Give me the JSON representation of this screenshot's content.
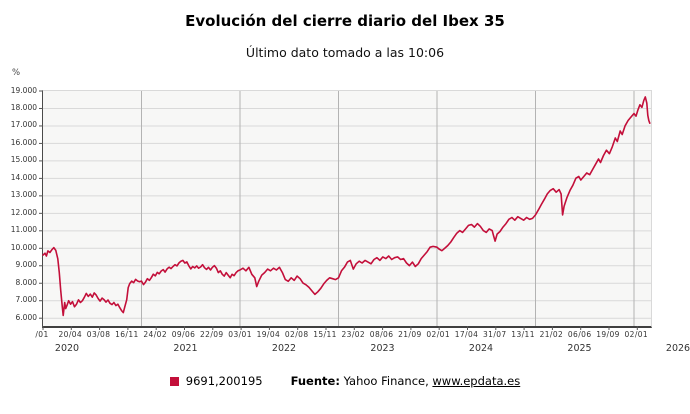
{
  "header": {
    "title": "Evolución del cierre diario del Ibex 35",
    "subtitle": "Último dato tomado a las 10:06"
  },
  "axes": {
    "y_unit_label": "%",
    "y_tick_labels": [
      "19.000",
      "18.000",
      "17.000",
      "16.000",
      "15.000",
      "14.000",
      "13.000",
      "12.000",
      "11.000",
      "10.000",
      "9.000",
      "8.000",
      "7.000",
      "6.000"
    ],
    "x_tick_labels": [
      "/01",
      "20/04",
      "03/08",
      "16/11",
      "24/02",
      "09/06",
      "22/09",
      "03/01",
      "19/04",
      "02/08",
      "15/11",
      "23/02",
      "08/06",
      "21/09",
      "02/01",
      "17/04",
      "31/07",
      "13/11",
      "21/02",
      "06/06",
      "19/09",
      "02/01"
    ],
    "year_labels": [
      "2020",
      "2021",
      "2022",
      "2023",
      "2024",
      "2025",
      "2026"
    ]
  },
  "legend": {
    "marker": "red-square",
    "series_label": "9691,200195",
    "source_label": "Fuente:",
    "source_text": " Yahoo Finance, ",
    "source_link": "www.epdata.es"
  },
  "colors": {
    "line": "#c30f3a",
    "h_grid": "#d9d9d9",
    "v_grid": "#b3b3b3",
    "axis": "#3f3f3f",
    "tick": "#555555",
    "plot_bg": "#f7f7f6"
  },
  "chart_data": {
    "type": "line",
    "title": "Evolución del cierre diario del Ibex 35",
    "subtitle": "Último dato tomado a las 10:06",
    "ylabel": "%",
    "ylim": [
      6000,
      19000
    ],
    "y_tick_step": 1000,
    "x_range_years": [
      2020.0,
      2026.17
    ],
    "grid": true,
    "legend_position": "bottom",
    "series": [
      {
        "name": "9691,200195",
        "color": "#c30f3a",
        "points": [
          [
            2020.0,
            9610
          ],
          [
            2020.02,
            9720
          ],
          [
            2020.035,
            9560
          ],
          [
            2020.05,
            9850
          ],
          [
            2020.07,
            9760
          ],
          [
            2020.09,
            9920
          ],
          [
            2020.11,
            10040
          ],
          [
            2020.13,
            9880
          ],
          [
            2020.15,
            9400
          ],
          [
            2020.165,
            8600
          ],
          [
            2020.18,
            7600
          ],
          [
            2020.195,
            6700
          ],
          [
            2020.205,
            6160
          ],
          [
            2020.22,
            6900
          ],
          [
            2020.23,
            6550
          ],
          [
            2020.245,
            6750
          ],
          [
            2020.26,
            7000
          ],
          [
            2020.28,
            6800
          ],
          [
            2020.3,
            6950
          ],
          [
            2020.32,
            6650
          ],
          [
            2020.34,
            6800
          ],
          [
            2020.36,
            7050
          ],
          [
            2020.38,
            6900
          ],
          [
            2020.4,
            7000
          ],
          [
            2020.42,
            7200
          ],
          [
            2020.44,
            7420
          ],
          [
            2020.46,
            7250
          ],
          [
            2020.48,
            7380
          ],
          [
            2020.5,
            7200
          ],
          [
            2020.52,
            7450
          ],
          [
            2020.54,
            7320
          ],
          [
            2020.56,
            7120
          ],
          [
            2020.58,
            6980
          ],
          [
            2020.6,
            7150
          ],
          [
            2020.62,
            7060
          ],
          [
            2020.64,
            6920
          ],
          [
            2020.66,
            7040
          ],
          [
            2020.68,
            6850
          ],
          [
            2020.7,
            6780
          ],
          [
            2020.72,
            6900
          ],
          [
            2020.74,
            6720
          ],
          [
            2020.76,
            6800
          ],
          [
            2020.78,
            6600
          ],
          [
            2020.8,
            6420
          ],
          [
            2020.815,
            6320
          ],
          [
            2020.83,
            6650
          ],
          [
            2020.85,
            7050
          ],
          [
            2020.865,
            7750
          ],
          [
            2020.88,
            7980
          ],
          [
            2020.9,
            8120
          ],
          [
            2020.92,
            8030
          ],
          [
            2020.94,
            8220
          ],
          [
            2020.96,
            8130
          ],
          [
            2020.98,
            8090
          ],
          [
            2021.0,
            8120
          ],
          [
            2021.02,
            7920
          ],
          [
            2021.04,
            8060
          ],
          [
            2021.06,
            8260
          ],
          [
            2021.08,
            8160
          ],
          [
            2021.1,
            8320
          ],
          [
            2021.12,
            8520
          ],
          [
            2021.14,
            8420
          ],
          [
            2021.16,
            8620
          ],
          [
            2021.18,
            8540
          ],
          [
            2021.2,
            8700
          ],
          [
            2021.22,
            8780
          ],
          [
            2021.24,
            8640
          ],
          [
            2021.26,
            8820
          ],
          [
            2021.28,
            8920
          ],
          [
            2021.3,
            8840
          ],
          [
            2021.32,
            8960
          ],
          [
            2021.34,
            9060
          ],
          [
            2021.36,
            8990
          ],
          [
            2021.38,
            9160
          ],
          [
            2021.4,
            9260
          ],
          [
            2021.42,
            9310
          ],
          [
            2021.44,
            9160
          ],
          [
            2021.46,
            9220
          ],
          [
            2021.48,
            9000
          ],
          [
            2021.5,
            8820
          ],
          [
            2021.52,
            8960
          ],
          [
            2021.54,
            8880
          ],
          [
            2021.56,
            8990
          ],
          [
            2021.58,
            8860
          ],
          [
            2021.6,
            8930
          ],
          [
            2021.62,
            9060
          ],
          [
            2021.64,
            8890
          ],
          [
            2021.66,
            8790
          ],
          [
            2021.68,
            8910
          ],
          [
            2021.7,
            8760
          ],
          [
            2021.72,
            8910
          ],
          [
            2021.74,
            9010
          ],
          [
            2021.76,
            8860
          ],
          [
            2021.78,
            8610
          ],
          [
            2021.8,
            8710
          ],
          [
            2021.82,
            8510
          ],
          [
            2021.84,
            8410
          ],
          [
            2021.86,
            8610
          ],
          [
            2021.88,
            8460
          ],
          [
            2021.9,
            8310
          ],
          [
            2021.92,
            8510
          ],
          [
            2021.94,
            8430
          ],
          [
            2021.96,
            8610
          ],
          [
            2021.98,
            8710
          ],
          [
            2022.0,
            8760
          ],
          [
            2022.03,
            8860
          ],
          [
            2022.06,
            8710
          ],
          [
            2022.09,
            8910
          ],
          [
            2022.12,
            8510
          ],
          [
            2022.15,
            8310
          ],
          [
            2022.17,
            7810
          ],
          [
            2022.19,
            8110
          ],
          [
            2022.22,
            8460
          ],
          [
            2022.25,
            8610
          ],
          [
            2022.28,
            8810
          ],
          [
            2022.31,
            8710
          ],
          [
            2022.34,
            8860
          ],
          [
            2022.37,
            8760
          ],
          [
            2022.4,
            8910
          ],
          [
            2022.43,
            8610
          ],
          [
            2022.46,
            8210
          ],
          [
            2022.49,
            8110
          ],
          [
            2022.52,
            8310
          ],
          [
            2022.55,
            8160
          ],
          [
            2022.58,
            8410
          ],
          [
            2022.61,
            8260
          ],
          [
            2022.64,
            8010
          ],
          [
            2022.67,
            7910
          ],
          [
            2022.7,
            7760
          ],
          [
            2022.73,
            7560
          ],
          [
            2022.76,
            7360
          ],
          [
            2022.79,
            7510
          ],
          [
            2022.82,
            7710
          ],
          [
            2022.85,
            7960
          ],
          [
            2022.88,
            8160
          ],
          [
            2022.91,
            8310
          ],
          [
            2022.94,
            8260
          ],
          [
            2022.97,
            8210
          ],
          [
            2023.0,
            8310
          ],
          [
            2023.03,
            8710
          ],
          [
            2023.06,
            8910
          ],
          [
            2023.09,
            9210
          ],
          [
            2023.12,
            9310
          ],
          [
            2023.15,
            8810
          ],
          [
            2023.18,
            9110
          ],
          [
            2023.21,
            9260
          ],
          [
            2023.24,
            9160
          ],
          [
            2023.27,
            9310
          ],
          [
            2023.3,
            9210
          ],
          [
            2023.33,
            9110
          ],
          [
            2023.36,
            9360
          ],
          [
            2023.39,
            9460
          ],
          [
            2023.42,
            9310
          ],
          [
            2023.45,
            9510
          ],
          [
            2023.48,
            9410
          ],
          [
            2023.51,
            9560
          ],
          [
            2023.54,
            9360
          ],
          [
            2023.57,
            9460
          ],
          [
            2023.6,
            9510
          ],
          [
            2023.63,
            9360
          ],
          [
            2023.66,
            9410
          ],
          [
            2023.69,
            9160
          ],
          [
            2023.72,
            9010
          ],
          [
            2023.75,
            9210
          ],
          [
            2023.78,
            8960
          ],
          [
            2023.81,
            9110
          ],
          [
            2023.84,
            9410
          ],
          [
            2023.87,
            9610
          ],
          [
            2023.9,
            9810
          ],
          [
            2023.93,
            10060
          ],
          [
            2023.96,
            10110
          ],
          [
            2024.0,
            10060
          ],
          [
            2024.02,
            9960
          ],
          [
            2024.05,
            9860
          ],
          [
            2024.08,
            10010
          ],
          [
            2024.11,
            10160
          ],
          [
            2024.14,
            10360
          ],
          [
            2024.17,
            10610
          ],
          [
            2024.2,
            10860
          ],
          [
            2024.23,
            11010
          ],
          [
            2024.26,
            10910
          ],
          [
            2024.29,
            11110
          ],
          [
            2024.32,
            11310
          ],
          [
            2024.35,
            11360
          ],
          [
            2024.38,
            11210
          ],
          [
            2024.41,
            11410
          ],
          [
            2024.44,
            11260
          ],
          [
            2024.47,
            11010
          ],
          [
            2024.5,
            10910
          ],
          [
            2024.53,
            11110
          ],
          [
            2024.56,
            11010
          ],
          [
            2024.575,
            10710
          ],
          [
            2024.59,
            10410
          ],
          [
            2024.61,
            10810
          ],
          [
            2024.64,
            10960
          ],
          [
            2024.67,
            11210
          ],
          [
            2024.7,
            11410
          ],
          [
            2024.73,
            11660
          ],
          [
            2024.76,
            11760
          ],
          [
            2024.79,
            11610
          ],
          [
            2024.82,
            11810
          ],
          [
            2024.85,
            11710
          ],
          [
            2024.88,
            11610
          ],
          [
            2024.91,
            11760
          ],
          [
            2024.94,
            11660
          ],
          [
            2024.97,
            11710
          ],
          [
            2025.0,
            11910
          ],
          [
            2025.03,
            12210
          ],
          [
            2025.06,
            12510
          ],
          [
            2025.09,
            12810
          ],
          [
            2025.12,
            13110
          ],
          [
            2025.15,
            13310
          ],
          [
            2025.18,
            13410
          ],
          [
            2025.21,
            13210
          ],
          [
            2025.24,
            13360
          ],
          [
            2025.26,
            13110
          ],
          [
            2025.275,
            11910
          ],
          [
            2025.29,
            12410
          ],
          [
            2025.32,
            12910
          ],
          [
            2025.35,
            13310
          ],
          [
            2025.38,
            13610
          ],
          [
            2025.41,
            14010
          ],
          [
            2025.44,
            14110
          ],
          [
            2025.46,
            13910
          ],
          [
            2025.49,
            14110
          ],
          [
            2025.52,
            14310
          ],
          [
            2025.55,
            14210
          ],
          [
            2025.58,
            14510
          ],
          [
            2025.61,
            14810
          ],
          [
            2025.64,
            15110
          ],
          [
            2025.66,
            14910
          ],
          [
            2025.69,
            15310
          ],
          [
            2025.72,
            15610
          ],
          [
            2025.75,
            15410
          ],
          [
            2025.78,
            15810
          ],
          [
            2025.81,
            16310
          ],
          [
            2025.83,
            16110
          ],
          [
            2025.86,
            16710
          ],
          [
            2025.88,
            16510
          ],
          [
            2025.91,
            17010
          ],
          [
            2025.94,
            17310
          ],
          [
            2025.97,
            17510
          ],
          [
            2026.0,
            17710
          ],
          [
            2026.02,
            17560
          ],
          [
            2026.04,
            17910
          ],
          [
            2026.06,
            18210
          ],
          [
            2026.08,
            18060
          ],
          [
            2026.1,
            18460
          ],
          [
            2026.115,
            18660
          ],
          [
            2026.13,
            18310
          ],
          [
            2026.14,
            17610
          ],
          [
            2026.15,
            17310
          ],
          [
            2026.16,
            17160
          ]
        ]
      }
    ]
  }
}
